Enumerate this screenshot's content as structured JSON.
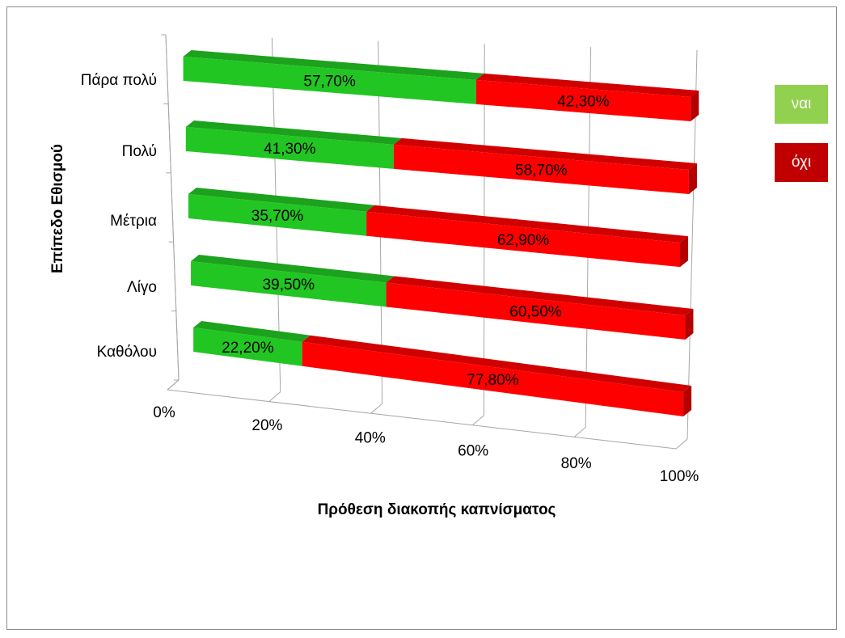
{
  "chart_data": {
    "type": "bar",
    "orientation": "horizontal",
    "stacked": "percent",
    "style": "3d",
    "categories": [
      "Καθόλου",
      "Λίγο",
      "Μέτρια",
      "Πολύ",
      "Πάρα πολύ"
    ],
    "series": [
      {
        "name": "ναι",
        "color": "#22c622",
        "values": [
          22.2,
          39.5,
          35.7,
          41.3,
          57.7
        ],
        "labels": [
          "22,20%",
          "39,50%",
          "35,70%",
          "41,30%",
          "57,70%"
        ]
      },
      {
        "name": "όχι",
        "color": "#ff0000",
        "values": [
          77.8,
          60.5,
          62.9,
          58.7,
          42.3
        ],
        "labels": [
          "77,80%",
          "60,50%",
          "62,90%",
          "58,70%",
          "42,30%"
        ]
      }
    ],
    "x_ticks": [
      "0%",
      "20%",
      "40%",
      "60%",
      "80%",
      "100%"
    ],
    "xlim": [
      0,
      100
    ],
    "xlabel": "Πρόθεση διακοπής καπνίσματος",
    "ylabel": "Επίπεδο Εθισμού",
    "grid": true,
    "legend": {
      "position": "right",
      "items": [
        {
          "label": "ναι",
          "color": "#92d050"
        },
        {
          "label": "όχι",
          "color": "#c00000"
        }
      ]
    }
  }
}
